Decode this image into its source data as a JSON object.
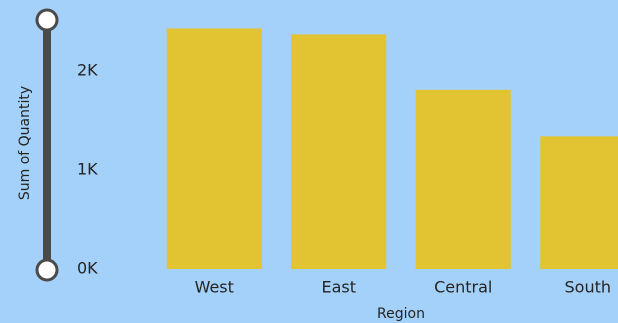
{
  "chart_data": {
    "type": "bar",
    "x_label": "Region",
    "y_label": "Sum of Quantity",
    "categories": [
      "West",
      "East",
      "Central",
      "South"
    ],
    "values": [
      2430,
      2370,
      1810,
      1340
    ],
    "color": "#e2c332",
    "ylim": [
      0,
      2500
    ],
    "yticks": [
      {
        "value": 0,
        "label": "0K"
      },
      {
        "value": 1000,
        "label": "1K"
      },
      {
        "value": 2000,
        "label": "2K"
      }
    ],
    "grid": false
  }
}
